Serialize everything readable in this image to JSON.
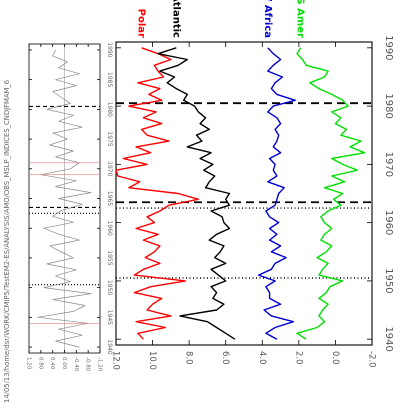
{
  "path_label": "14/05/13/home/dsr/WORK/CMIP5/TestEM2-ES/ANALYSIS/AMO/OBS_MSLP_INDICES_CNDJFMAM_6",
  "chart_data": [
    {
      "type": "line",
      "panel": "small-index",
      "x_label_orientation": "rotated",
      "x_ticks": [
        1940,
        1945,
        1950,
        1955,
        1960,
        1965,
        1970,
        1975,
        1980,
        1985,
        1990
      ],
      "x_tick_labels": [
        "1940",
        "1945",
        "1950",
        "1955",
        "1960",
        "1965",
        "1970",
        "1975",
        "1980",
        "1985",
        "1990"
      ],
      "y_ticks": [
        -1.2,
        -0.8,
        -0.4,
        0.0,
        0.4,
        0.8,
        1.2
      ],
      "y_tick_labels": [
        "-1.20",
        "-0.80",
        "-0.40",
        "0.00",
        "0.40",
        "0.80",
        "1.20"
      ],
      "xlim": [
        1939,
        1991
      ],
      "ylim": [
        -1.2,
        1.2
      ],
      "zero_line": true,
      "dotted_vlines": [
        1950.5,
        1962.5
      ],
      "dashed_vlines": [
        1963.5,
        1980.5
      ],
      "series": [
        {
          "color": "#888888",
          "x": [
            1940,
            1941,
            1942,
            1943,
            1944,
            1945,
            1946,
            1947,
            1948,
            1949,
            1950,
            1951,
            1952,
            1953,
            1954,
            1955,
            1956,
            1957,
            1958,
            1959,
            1960,
            1961,
            1962,
            1963,
            1964,
            1965,
            1966,
            1967,
            1968,
            1969,
            1970,
            1971,
            1972,
            1973,
            1974,
            1975,
            1976,
            1977,
            1978,
            1979,
            1980,
            1981,
            1982,
            1983,
            1984,
            1985,
            1986,
            1987,
            1988,
            1989,
            1990
          ],
          "y": [
            -0.5,
            0.3,
            -0.6,
            0.2,
            -0.8,
            0.9,
            -0.3,
            -0.7,
            0.4,
            -0.9,
            0.7,
            -0.2,
            0.3,
            -0.4,
            0.6,
            -0.3,
            0.1,
            0.5,
            -0.5,
            0.2,
            0.7,
            -0.3,
            0.4,
            0.1,
            -0.6,
            0.2,
            -0.9,
            0.3,
            -0.4,
            0.8,
            -0.2,
            -0.5,
            0.3,
            -0.3,
            0.5,
            -0.1,
            0.4,
            -0.6,
            0.2,
            -0.3,
            0.6,
            -0.2,
            0.1,
            0.4,
            -0.4,
            0.3,
            -0.5,
            0.2,
            -0.1,
            0.4,
            0.3
          ]
        }
      ],
      "highlights": [
        {
          "color": "#e08080",
          "x": [
            1944,
            1969,
            1971
          ]
        }
      ]
    },
    {
      "type": "line",
      "panel": "main",
      "x_label_orientation": "rotated",
      "x_ticks": [
        1940,
        1950,
        1960,
        1970,
        1980,
        1990
      ],
      "x_tick_labels": [
        "1940",
        "1950",
        "1960",
        "1970",
        "1980",
        "1990"
      ],
      "y_ticks": [
        -2.0,
        0.0,
        2.0,
        4.0,
        6.0,
        8.0,
        10.0,
        12.0
      ],
      "y_tick_labels": [
        "-2.0",
        "0.0",
        "2.0",
        "4.0",
        "6.0",
        "8.0",
        "10.0",
        "12.0"
      ],
      "xlim": [
        1939,
        1991
      ],
      "ylim": [
        -2.0,
        12.0
      ],
      "grid": false,
      "dotted_vlines": [
        1950.5,
        1962.5
      ],
      "dashed_vlines": [
        1963.5,
        1980.5
      ],
      "series": [
        {
          "name": "Polar",
          "color": "#ff0000",
          "x": [
            1940,
            1941,
            1942,
            1943,
            1944,
            1945,
            1946,
            1947,
            1948,
            1949,
            1950,
            1951,
            1952,
            1953,
            1954,
            1955,
            1956,
            1957,
            1958,
            1959,
            1960,
            1961,
            1962,
            1963,
            1964,
            1965,
            1966,
            1967,
            1968,
            1969,
            1970,
            1971,
            1972,
            1973,
            1974,
            1975,
            1976,
            1977,
            1978,
            1979,
            1980,
            1981,
            1982,
            1983,
            1984,
            1985,
            1986,
            1987,
            1988,
            1989,
            1990
          ],
          "y": [
            10.5,
            10.8,
            9.3,
            10.9,
            9.0,
            10.3,
            10.0,
            9.5,
            11.0,
            10.1,
            8.2,
            11.0,
            10.5,
            9.6,
            10.4,
            9.9,
            9.6,
            10.5,
            9.7,
            10.9,
            9.9,
            10.3,
            9.6,
            9.1,
            7.5,
            8.6,
            11.3,
            10.7,
            11.9,
            12.0,
            10.3,
            11.6,
            10.1,
            10.9,
            9.1,
            10.3,
            10.6,
            9.5,
            10.5,
            9.8,
            11.3,
            9.5,
            10.2,
            9.6,
            10.8,
            9.4,
            9.7,
            9.9,
            9.0,
            9.7,
            10.6
          ]
        },
        {
          "name": "Atlantic",
          "color": "#000000",
          "x": [
            1940,
            1941,
            1942,
            1943,
            1944,
            1945,
            1946,
            1947,
            1948,
            1949,
            1950,
            1951,
            1952,
            1953,
            1954,
            1955,
            1956,
            1957,
            1958,
            1959,
            1960,
            1961,
            1962,
            1963,
            1964,
            1965,
            1966,
            1967,
            1968,
            1969,
            1970,
            1971,
            1972,
            1973,
            1974,
            1975,
            1976,
            1977,
            1978,
            1979,
            1980,
            1981,
            1982,
            1983,
            1984,
            1985,
            1986,
            1987,
            1988,
            1989,
            1990
          ],
          "y": [
            5.5,
            6.0,
            6.5,
            7.0,
            8.5,
            6.5,
            6.1,
            6.7,
            6.5,
            6.8,
            6.0,
            6.4,
            6.8,
            6.0,
            6.6,
            6.3,
            6.1,
            6.9,
            6.5,
            5.8,
            6.1,
            6.2,
            6.8,
            5.8,
            6.0,
            5.8,
            7.1,
            6.9,
            6.6,
            7.2,
            6.7,
            7.4,
            6.8,
            8.1,
            7.3,
            7.6,
            6.9,
            7.4,
            7.1,
            7.5,
            7.7,
            8.3,
            8.1,
            8.7,
            9.2,
            8.8,
            9.6,
            8.6,
            8.1,
            9.7,
            8.7
          ]
        },
        {
          "name": "W Africa",
          "color": "#0000d0",
          "x": [
            1940,
            1941,
            1942,
            1943,
            1944,
            1945,
            1946,
            1947,
            1948,
            1949,
            1950,
            1951,
            1952,
            1953,
            1954,
            1955,
            1956,
            1957,
            1958,
            1959,
            1960,
            1961,
            1962,
            1963,
            1964,
            1965,
            1966,
            1967,
            1968,
            1969,
            1970,
            1971,
            1972,
            1973,
            1974,
            1975,
            1976,
            1977,
            1978,
            1979,
            1980,
            1981,
            1982,
            1983,
            1984,
            1985,
            1986,
            1987,
            1988,
            1989,
            1990
          ],
          "y": [
            3.2,
            3.8,
            3.3,
            2.3,
            3.5,
            3.9,
            3.0,
            3.6,
            3.6,
            3.8,
            3.3,
            4.2,
            3.5,
            3.3,
            2.7,
            3.5,
            3.0,
            3.6,
            3.2,
            3.6,
            3.1,
            3.6,
            3.8,
            3.3,
            3.2,
            3.1,
            2.8,
            3.7,
            3.2,
            3.4,
            3.3,
            3.6,
            3.0,
            3.4,
            3.2,
            3.1,
            3.3,
            3.0,
            3.2,
            3.7,
            3.4,
            2.2,
            3.2,
            3.5,
            3.3,
            2.9,
            3.7,
            3.4,
            3.0,
            3.4,
            3.7
          ]
        },
        {
          "name": "S Amer",
          "color": "#00e000",
          "x": [
            1940,
            1941,
            1942,
            1943,
            1944,
            1945,
            1946,
            1947,
            1948,
            1949,
            1950,
            1951,
            1952,
            1953,
            1954,
            1955,
            1956,
            1957,
            1958,
            1959,
            1960,
            1961,
            1962,
            1963,
            1964,
            1965,
            1966,
            1967,
            1968,
            1969,
            1970,
            1971,
            1972,
            1973,
            1974,
            1975,
            1976,
            1977,
            1978,
            1979,
            1980,
            1981,
            1982,
            1983,
            1984,
            1985,
            1986,
            1987,
            1988,
            1989,
            1990
          ],
          "y": [
            1.6,
            2.1,
            1.0,
            0.6,
            0.9,
            0.7,
            0.4,
            0.9,
            0.5,
            0.3,
            -0.4,
            0.9,
            0.7,
            0.4,
            1.0,
            0.5,
            0.2,
            0.8,
            0.6,
            0.2,
            0.6,
            0.8,
            0.4,
            -0.3,
            0.1,
            -0.4,
            0.6,
            -0.5,
            0.2,
            -1.2,
            -0.4,
            0.2,
            -1.6,
            -0.8,
            -1.4,
            -0.3,
            -0.6,
            0.0,
            -0.3,
            0.2,
            -0.7,
            -0.4,
            0.2,
            0.9,
            1.4,
            0.6,
            0.4,
            1.6,
            1.8,
            2.1,
            1.9
          ]
        }
      ]
    }
  ]
}
